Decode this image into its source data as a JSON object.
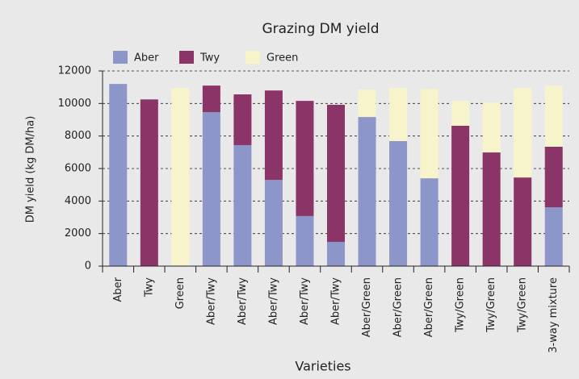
{
  "chart_data": {
    "type": "stacked_bar",
    "title": "Grazing DM yield",
    "x_label": "Varieties",
    "y_label": "DM yield (kg DM/ha)",
    "categories": [
      "Aber",
      "Twy",
      "Green",
      "Aber/Twy",
      "Aber/Twy",
      "Aber/Twy",
      "Aber/Twy",
      "Aber/Twy",
      "Aber/Green",
      "Aber/Green",
      "Aber/Green",
      "Twy/Green",
      "Twy/Green",
      "Twy/Green",
      "3-way mixture"
    ],
    "series": [
      {
        "name": "Aber",
        "color": "#8d96c8",
        "values": [
          11200,
          null,
          null,
          9470,
          7440,
          5300,
          3080,
          1490,
          9170,
          7690,
          5400,
          null,
          null,
          null,
          3620
        ]
      },
      {
        "name": "Twy",
        "color": "#8b3467",
        "values": [
          null,
          10250,
          null,
          1630,
          3120,
          5500,
          7080,
          8430,
          null,
          null,
          null,
          8630,
          6990,
          5450,
          3720
        ]
      },
      {
        "name": "Green",
        "color": "#f7f4cc",
        "values": [
          null,
          null,
          10950,
          null,
          null,
          null,
          null,
          null,
          1690,
          3260,
          5500,
          1530,
          3070,
          5500,
          3760
        ]
      }
    ],
    "ylim": [
      0,
      12000
    ],
    "yticks": [
      0,
      2000,
      4000,
      6000,
      8000,
      10000,
      12000
    ],
    "grid": true,
    "legend": "top-left"
  }
}
